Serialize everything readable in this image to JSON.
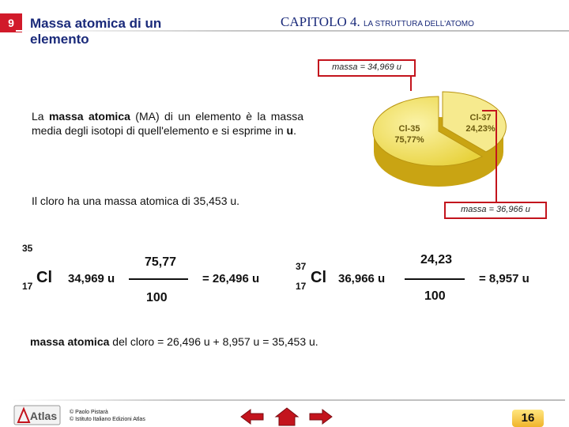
{
  "header": {
    "slide_number": "9",
    "title_line1": "Massa atomica di un",
    "title_line2": "elemento",
    "chapter_main": "CAPITOLO 4.",
    "chapter_sub": "LA STRUTTURA DELL'ATOMO"
  },
  "definition": {
    "p1": "La",
    "bold1": "massa atomica",
    "p2": "(MA) di un elemento è la massa media degli isotopi di quell'elemento e si esprime in",
    "bold2": "u",
    "p3": "."
  },
  "chlorine_text": "Il cloro ha una massa atomica di 35,453 u.",
  "pie": {
    "slices": [
      {
        "label": "Cl-35",
        "percent_label": "75,77%",
        "percent": 75.77,
        "color": "#f2e36a"
      },
      {
        "label": "Cl-37",
        "percent_label": "24,23%",
        "percent": 24.23,
        "color": "#f5e98f"
      }
    ],
    "callout_top": "massa = 34,969 u",
    "callout_bottom": "massa = 36,966 u"
  },
  "calc": {
    "iso1": {
      "mass_number": "35",
      "atomic_number": "17",
      "symbol": "Cl",
      "mass": "34,969 u",
      "numerator": "75,77",
      "denominator": "100",
      "result": "= 26,496 u"
    },
    "iso2": {
      "mass_number": "37",
      "atomic_number": "17",
      "symbol": "Cl",
      "mass": "36,966 u",
      "numerator": "24,23",
      "denominator": "100",
      "result": "= 8,957 u"
    }
  },
  "final": {
    "bold": "massa atomica",
    "rest": "del cloro = 26,496 u + 8,957 u =  35,453 u."
  },
  "footer": {
    "logo_text": "Atlas",
    "author_line1": "© Paolo Pistarà",
    "author_line2": "© Istituto Italiano Edizioni Atlas",
    "page_number": "16"
  }
}
